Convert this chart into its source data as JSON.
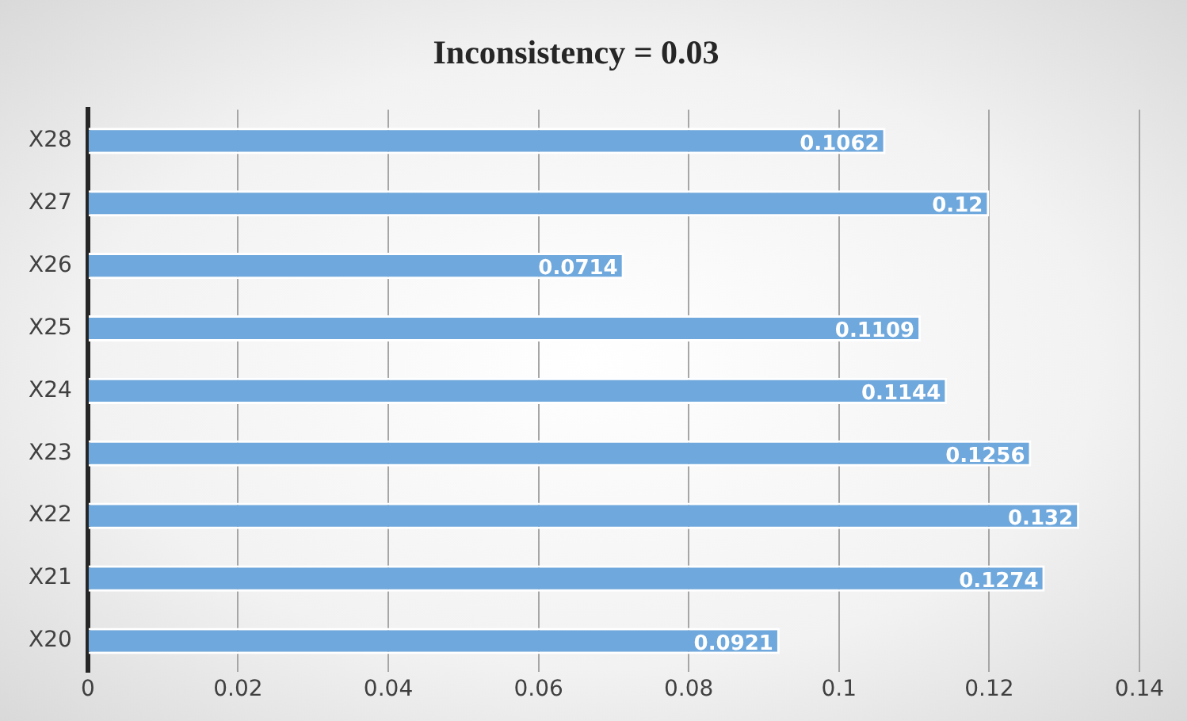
{
  "chart_data": {
    "type": "bar",
    "orientation": "horizontal",
    "title": "Inconsistency = 0.03",
    "categories": [
      "X28",
      "X27",
      "X26",
      "X25",
      "X24",
      "X23",
      "X22",
      "X21",
      "X20"
    ],
    "values": [
      0.1062,
      0.12,
      0.0714,
      0.1109,
      0.1144,
      0.1256,
      0.132,
      0.1274,
      0.0921
    ],
    "color": "#6fa8dc",
    "xlim": [
      0,
      0.14
    ],
    "xticks": [
      0,
      0.02,
      0.04,
      0.06,
      0.08,
      0.1,
      0.12,
      0.14
    ],
    "grid": "x",
    "data_labels": true,
    "legend": false
  }
}
